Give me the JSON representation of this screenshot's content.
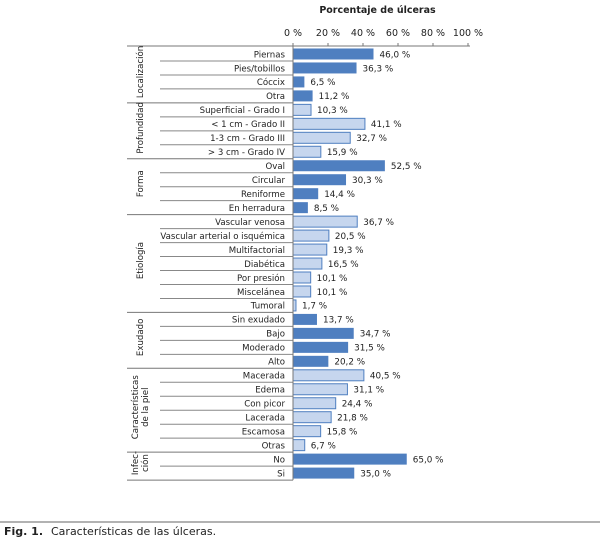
{
  "chart_data": {
    "type": "bar",
    "orientation": "horizontal",
    "title": "Porcentaje de úlceras",
    "xlim": [
      0,
      100
    ],
    "xticks": [
      "0 %",
      "20 %",
      "40 %",
      "60 %",
      "80 %",
      "100 %"
    ],
    "grid": false,
    "colors": {
      "dark": "#4f7fc0",
      "light": "#c6d6ee",
      "border": "#4f7fc0"
    },
    "groups": [
      {
        "label": [
          "Localización"
        ],
        "shade": "dark",
        "categories": [
          "Piernas",
          "Pies/tobillos",
          "Cóccix",
          "Otra"
        ],
        "values": [
          46.0,
          36.3,
          6.5,
          11.2
        ],
        "labels": [
          "46,0 %",
          "36,3 %",
          "6,5 %",
          "11,2 %"
        ]
      },
      {
        "label": [
          "Profundidad"
        ],
        "shade": "light",
        "categories": [
          "Superficial - Grado I",
          "< 1 cm - Grado II",
          "1-3 cm - Grado III",
          "> 3 cm - Grado IV"
        ],
        "values": [
          10.3,
          41.1,
          32.7,
          15.9
        ],
        "labels": [
          "10,3 %",
          "41,1 %",
          "32,7 %",
          "15,9 %"
        ]
      },
      {
        "label": [
          "Forma"
        ],
        "shade": "dark",
        "categories": [
          "Oval",
          "Circular",
          "Reniforme",
          "En herradura"
        ],
        "values": [
          52.5,
          30.3,
          14.4,
          8.5
        ],
        "labels": [
          "52,5 %",
          "30,3 %",
          "14,4 %",
          "8,5 %"
        ]
      },
      {
        "label": [
          "Etiología"
        ],
        "shade": "light",
        "categories": [
          "Vascular venosa",
          "Vascular arterial o isquémica",
          "Multifactorial",
          "Diabética",
          "Por presión",
          "Miscelánea",
          "Tumoral"
        ],
        "values": [
          36.7,
          20.5,
          19.3,
          16.5,
          10.1,
          10.1,
          1.7
        ],
        "labels": [
          "36,7 %",
          "20,5 %",
          "19,3 %",
          "16,5 %",
          "10,1 %",
          "10,1 %",
          "1,7 %"
        ]
      },
      {
        "label": [
          "Exudado"
        ],
        "shade": "dark",
        "categories": [
          "Sin exudado",
          "Bajo",
          "Moderado",
          "Alto"
        ],
        "values": [
          13.7,
          34.7,
          31.5,
          20.2
        ],
        "labels": [
          "13,7 %",
          "34,7 %",
          "31,5 %",
          "20,2 %"
        ]
      },
      {
        "label": [
          "Características",
          "de la piel"
        ],
        "shade": "light",
        "categories": [
          "Macerada",
          "Edema",
          "Con picor",
          "Lacerada",
          "Escamosa",
          "Otras"
        ],
        "values": [
          40.5,
          31.1,
          24.4,
          21.8,
          15.8,
          6.7
        ],
        "labels": [
          "40,5 %",
          "31,1 %",
          "24,4 %",
          "21,8 %",
          "15,8 %",
          "6,7 %"
        ]
      },
      {
        "label": [
          "Infec-",
          "ción"
        ],
        "shade": "dark",
        "categories": [
          "No",
          "Si"
        ],
        "values": [
          65.0,
          35.0
        ],
        "labels": [
          "65,0 %",
          "35,0 %"
        ]
      }
    ]
  },
  "caption": {
    "fig": "Fig. 1.",
    "text": "Características de las úlceras."
  }
}
